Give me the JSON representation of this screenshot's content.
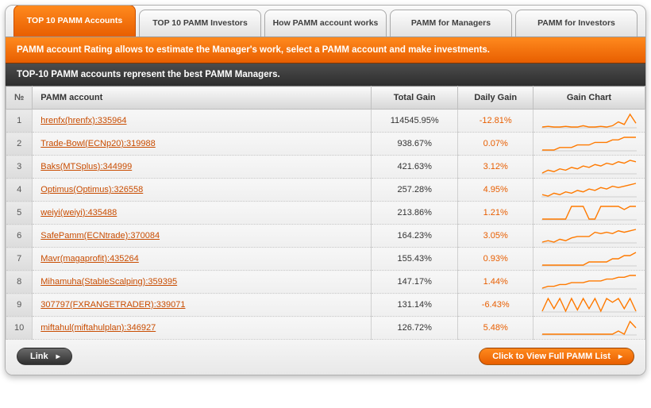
{
  "tabs": [
    {
      "label": "TOP 10 PAMM Accounts",
      "active": true
    },
    {
      "label": "TOP 10 PAMM Investors",
      "active": false
    },
    {
      "label": "How PAMM account works",
      "active": false
    },
    {
      "label": "PAMM for Managers",
      "active": false
    },
    {
      "label": "PAMM for Investors",
      "active": false
    }
  ],
  "banner": "PAMM account Rating allows to estimate the Manager's work, select a PAMM account and make investments.",
  "subtitle": "TOP-10 PAMM accounts represent the best PAMM Managers.",
  "columns": {
    "no": "№",
    "account": "PAMM account",
    "total": "Total Gain",
    "daily": "Daily Gain",
    "chart": "Gain Chart"
  },
  "spark_style": {
    "stroke": "#ff7a00",
    "stroke_width": 1.4,
    "baseline": "#d0d0d0"
  },
  "rows": [
    {
      "no": 1,
      "account": "hrenfx(hrenfx):335964",
      "total": "114545.95%",
      "daily": "-12.81%",
      "spark": [
        10,
        11,
        10,
        10,
        11,
        10,
        10,
        12,
        10,
        10,
        11,
        10,
        12,
        18,
        14,
        30,
        16
      ]
    },
    {
      "no": 2,
      "account": "Trade-Bowl(ECNp20):319988",
      "total": "938.67%",
      "daily": "0.07%",
      "spark": [
        10,
        10,
        10,
        11,
        11,
        11,
        12,
        12,
        12,
        13,
        13,
        13,
        14,
        14,
        15,
        15,
        15
      ]
    },
    {
      "no": 3,
      "account": "Baks(MTSplus):344999",
      "total": "421.63%",
      "daily": "3.12%",
      "spark": [
        9,
        11,
        10,
        12,
        11,
        13,
        12,
        14,
        13,
        15,
        14,
        16,
        15,
        17,
        16,
        18,
        17
      ]
    },
    {
      "no": 4,
      "account": "Optimus(Optimus):326558",
      "total": "257.28%",
      "daily": "4.95%",
      "spark": [
        10,
        9,
        11,
        10,
        12,
        11,
        13,
        12,
        14,
        13,
        15,
        14,
        16,
        15,
        16,
        17,
        18
      ]
    },
    {
      "no": 5,
      "account": "weiyi(weiyi):435488",
      "total": "213.86%",
      "daily": "1.21%",
      "spark": [
        6,
        6,
        6,
        6,
        6,
        18,
        18,
        18,
        6,
        6,
        18,
        18,
        18,
        18,
        15,
        18,
        18
      ]
    },
    {
      "no": 6,
      "account": "SafePamm(ECNtrade):370084",
      "total": "164.23%",
      "daily": "3.05%",
      "spark": [
        8,
        9,
        8,
        10,
        9,
        11,
        12,
        12,
        12,
        15,
        14,
        15,
        14,
        16,
        15,
        16,
        17
      ]
    },
    {
      "no": 7,
      "account": "Mavr(magaprofit):435264",
      "total": "155.43%",
      "daily": "0.93%",
      "spark": [
        10,
        10,
        10,
        10,
        10,
        10,
        10,
        10,
        11,
        11,
        11,
        11,
        12,
        12,
        13,
        13,
        14
      ]
    },
    {
      "no": 8,
      "account": "Mihamuha(StableScalping):359395",
      "total": "147.17%",
      "daily": "1.44%",
      "spark": [
        9,
        10,
        10,
        11,
        11,
        12,
        12,
        12,
        13,
        13,
        13,
        14,
        14,
        15,
        15,
        16,
        16
      ]
    },
    {
      "no": 9,
      "account": "307797(FXRANGETRADER):339071",
      "total": "131.14%",
      "daily": "-6.43%",
      "spark": [
        8,
        18,
        10,
        18,
        8,
        18,
        9,
        18,
        10,
        18,
        8,
        18,
        15,
        18,
        10,
        18,
        8
      ]
    },
    {
      "no": 10,
      "account": "miftahul(miftahulplan):346927",
      "total": "126.72%",
      "daily": "5.48%",
      "spark": [
        10,
        10,
        10,
        10,
        10,
        10,
        10,
        10,
        10,
        10,
        10,
        10,
        10,
        11,
        10,
        14,
        12
      ]
    }
  ],
  "footer": {
    "link_label": "Link",
    "view_all_label": "Click to View Full PAMM List"
  }
}
